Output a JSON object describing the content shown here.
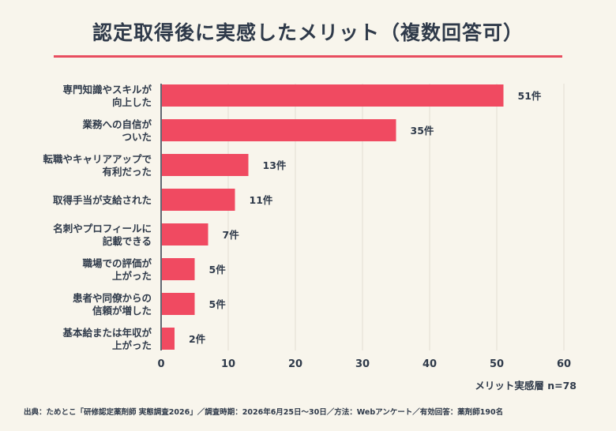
{
  "title": "認定取得後に実感したメリット（複数回答可）",
  "source": "出典：ためとこ「研修認定薬剤師 実態調査2026」／調査時期：2026年6月25日〜30日／方法：Webアンケート／有効回答：薬剤師190名",
  "chart_data": {
    "type": "bar",
    "orientation": "horizontal",
    "categories": [
      [
        "専門知識やスキルが",
        "向上した"
      ],
      [
        "業務への自信が",
        "ついた"
      ],
      [
        "転職やキャリアアップで",
        "有利だった"
      ],
      [
        "取得手当が支給された"
      ],
      [
        "名刺やプロフィールに",
        "記載できる"
      ],
      [
        "職場での評価が",
        "上がった"
      ],
      [
        "患者や同僚からの",
        "信頼が増した"
      ],
      [
        "基本給または年収が",
        "上がった"
      ]
    ],
    "values": [
      51,
      35,
      13,
      11,
      7,
      5,
      5,
      2
    ],
    "value_labels": [
      "51件",
      "35件",
      "13件",
      "11件",
      "7件",
      "5件",
      "5件",
      "2件"
    ],
    "xlim": [
      0,
      60
    ],
    "xticks": [
      "0",
      "10",
      "20",
      "30",
      "40",
      "50",
      "60"
    ],
    "xlabel": "メリット実感層 n=78",
    "grid": true,
    "bar_color": "#f04a61"
  }
}
